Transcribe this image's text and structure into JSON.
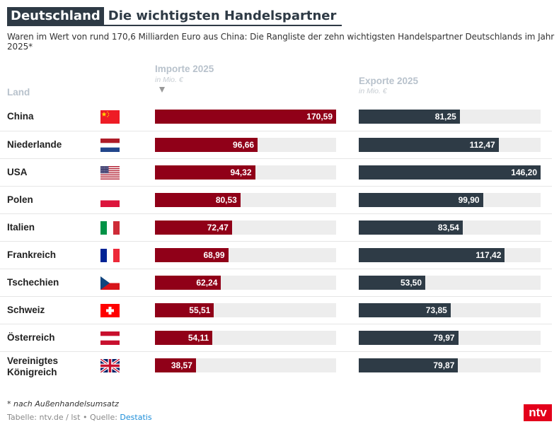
{
  "header": {
    "tag": "Deutschland",
    "title": "Die wichtigsten Handelspartner",
    "subtitle": "Waren im Wert von rund 170,6 Milliarden Euro aus China: Die Rangliste der zehn wichtigsten Handelspartner Deutschlands im Jahr 2025*"
  },
  "columns": {
    "land": "Land",
    "imports": "Importe 2025",
    "imports_unit": "in Mio. €",
    "exports": "Exporte 2025",
    "exports_unit": "in Mio. €",
    "sort_icon": "sort-descending-icon"
  },
  "colors": {
    "imports": "#900018",
    "exports": "#2e3b46",
    "track": "#ededed",
    "accent_logo": "#e3001b"
  },
  "chart_data": {
    "type": "bar",
    "title": "Die wichtigsten Handelspartner",
    "subtitle": "Waren im Wert von rund 170,6 Milliarden Euro aus China: Die Rangliste der zehn wichtigsten Handelspartner Deutschlands im Jahr 2025*",
    "xlabel": "",
    "ylabel": "in Mio. €",
    "categories": [
      "China",
      "Niederlande",
      "USA",
      "Polen",
      "Italien",
      "Frankreich",
      "Tschechien",
      "Schweiz",
      "Österreich",
      "Vereinigtes Königreich"
    ],
    "flags": [
      "cn",
      "nl",
      "us",
      "pl",
      "it",
      "fr",
      "cz",
      "ch",
      "at",
      "gb"
    ],
    "series": [
      {
        "name": "Importe 2025",
        "values": [
          170.59,
          96.66,
          94.32,
          80.53,
          72.47,
          68.99,
          62.24,
          55.51,
          54.11,
          38.57
        ],
        "labels": [
          "170,59",
          "96,66",
          "94,32",
          "80,53",
          "72,47",
          "68,99",
          "62,24",
          "55,51",
          "54,11",
          "38,57"
        ],
        "max": 170.59
      },
      {
        "name": "Exporte 2025",
        "values": [
          81.25,
          112.47,
          146.2,
          99.9,
          83.54,
          117.42,
          53.5,
          73.85,
          79.97,
          79.87
        ],
        "labels": [
          "81,25",
          "112,47",
          "146,20",
          "99,90",
          "83,54",
          "117,42",
          "53,50",
          "73,85",
          "79,97",
          "79,87"
        ],
        "max": 146.2
      }
    ]
  },
  "footer": {
    "note": "* nach Außenhandelsumsatz",
    "source_prefix": "Tabelle: ntv.de / lst • Quelle: ",
    "source_link": "Destatis",
    "logo": "ntv"
  }
}
